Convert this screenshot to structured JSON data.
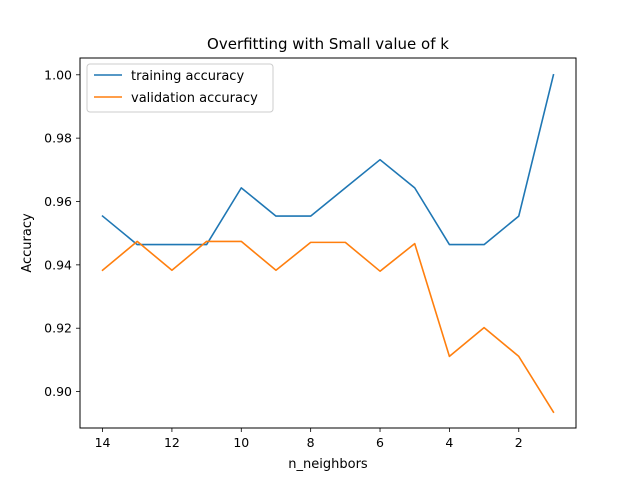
{
  "chart_data": {
    "type": "line",
    "title": "Overfitting with Small value of k",
    "xlabel": "n_neighbors",
    "ylabel": "Accuracy",
    "x": [
      14,
      13,
      12,
      11,
      10,
      9,
      8,
      7,
      6,
      5,
      4,
      3,
      2,
      1
    ],
    "xlim": [
      14.65,
      0.35
    ],
    "ylim": [
      0.8885,
      1.0053
    ],
    "x_ticks": [
      14,
      12,
      10,
      8,
      6,
      4,
      2
    ],
    "y_ticks": [
      0.9,
      0.92,
      0.94,
      0.96,
      0.98,
      1.0
    ],
    "x_tick_labels": [
      "14",
      "12",
      "10",
      "8",
      "6",
      "4",
      "2"
    ],
    "y_tick_labels": [
      "0.90",
      "0.92",
      "0.94",
      "0.96",
      "0.98",
      "1.00"
    ],
    "grid": false,
    "x_axis_reversed": true,
    "legend_position": "top-left",
    "series": [
      {
        "name": "training accuracy",
        "color": "#1f77b4",
        "values": [
          0.9554,
          0.9464,
          0.9464,
          0.9464,
          0.9643,
          0.9554,
          0.9554,
          0.9643,
          0.9732,
          0.9643,
          0.9464,
          0.9464,
          0.9554,
          1.0
        ]
      },
      {
        "name": "validation accuracy",
        "color": "#ff7f0e",
        "values": [
          0.9383,
          0.9474,
          0.9383,
          0.9474,
          0.9474,
          0.9383,
          0.9471,
          0.9471,
          0.938,
          0.9467,
          0.9111,
          0.9202,
          0.9111,
          0.8935
        ]
      }
    ]
  }
}
